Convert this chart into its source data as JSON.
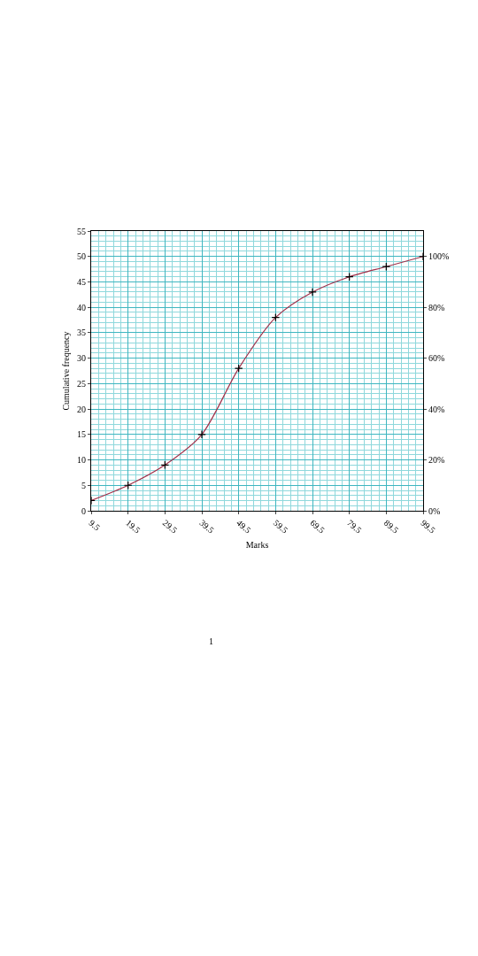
{
  "chart_data": {
    "type": "line",
    "xlabel": "Marks",
    "ylabel": "Cumulative frequency",
    "x": [
      9.5,
      19.5,
      29.5,
      39.5,
      49.5,
      59.5,
      69.5,
      79.5,
      89.5,
      99.5
    ],
    "series": [
      {
        "color": "#a0304a",
        "values": [
          2,
          5,
          9,
          15,
          28,
          38,
          43,
          46,
          48,
          50
        ]
      }
    ],
    "xlim": [
      9.5,
      99.5
    ],
    "xticks": [
      9.5,
      19.5,
      29.5,
      39.5,
      49.5,
      59.5,
      69.5,
      79.5,
      89.5,
      99.5,
      {
        "value": 11.5,
        "label": null
      },
      {
        "value": 13.5,
        "label": null
      },
      {
        "value": 15.5,
        "label": null
      },
      {
        "value": 17.5,
        "label": null
      },
      {
        "value": 21.5,
        "label": null
      },
      {
        "value": 23.5,
        "label": null
      },
      {
        "value": 25.5,
        "label": null
      },
      {
        "value": 27.5,
        "label": null
      },
      {
        "value": 31.5,
        "label": null
      },
      {
        "value": 33.5,
        "label": null
      },
      {
        "value": 35.5,
        "label": null
      },
      {
        "value": 37.5,
        "label": null
      },
      {
        "value": 41.5,
        "label": null
      },
      {
        "value": 43.5,
        "label": null
      },
      {
        "value": 45.5,
        "label": null
      },
      {
        "value": 47.5,
        "label": null
      },
      {
        "value": 51.5,
        "label": null
      },
      {
        "value": 53.5,
        "label": null
      },
      {
        "value": 55.5,
        "label": null
      },
      {
        "value": 57.5,
        "label": null
      },
      {
        "value": 61.5,
        "label": null
      },
      {
        "value": 63.5,
        "label": null
      },
      {
        "value": 65.5,
        "label": null
      },
      {
        "value": 67.5,
        "label": null
      },
      {
        "value": 71.5,
        "label": null
      },
      {
        "value": 73.5,
        "label": null
      },
      {
        "value": 75.5,
        "label": null
      },
      {
        "value": 77.5,
        "label": null
      },
      {
        "value": 81.5,
        "label": null
      },
      {
        "value": 83.5,
        "label": null
      },
      {
        "value": 85.5,
        "label": null
      },
      {
        "value": 87.5,
        "label": null
      },
      {
        "value": 91.5,
        "label": null
      },
      {
        "value": 93.5,
        "label": null
      },
      {
        "value": 95.5,
        "label": null
      },
      {
        "value": 97.5,
        "label": null
      }
    ],
    "ylim": [
      0,
      55
    ],
    "yticks": [
      0,
      5,
      10,
      15,
      20,
      25,
      30,
      35,
      40,
      45,
      50,
      55,
      {
        "value": 1,
        "label": null
      },
      {
        "value": 2,
        "label": null
      },
      {
        "value": 3,
        "label": null
      },
      {
        "value": 4,
        "label": null
      },
      {
        "value": 6,
        "label": null
      },
      {
        "value": 7,
        "label": null
      },
      {
        "value": 8,
        "label": null
      },
      {
        "value": 9,
        "label": null
      },
      {
        "value": 11,
        "label": null
      },
      {
        "value": 12,
        "label": null
      },
      {
        "value": 13,
        "label": null
      },
      {
        "value": 14,
        "label": null
      },
      {
        "value": 16,
        "label": null
      },
      {
        "value": 17,
        "label": null
      },
      {
        "value": 18,
        "label": null
      },
      {
        "value": 19,
        "label": null
      },
      {
        "value": 21,
        "label": null
      },
      {
        "value": 22,
        "label": null
      },
      {
        "value": 23,
        "label": null
      },
      {
        "value": 24,
        "label": null
      },
      {
        "value": 26,
        "label": null
      },
      {
        "value": 27,
        "label": null
      },
      {
        "value": 28,
        "label": null
      },
      {
        "value": 29,
        "label": null
      },
      {
        "value": 31,
        "label": null
      },
      {
        "value": 32,
        "label": null
      },
      {
        "value": 33,
        "label": null
      },
      {
        "value": 34,
        "label": null
      },
      {
        "value": 36,
        "label": null
      },
      {
        "value": 37,
        "label": null
      },
      {
        "value": 38,
        "label": null
      },
      {
        "value": 39,
        "label": null
      },
      {
        "value": 41,
        "label": null
      },
      {
        "value": 42,
        "label": null
      },
      {
        "value": 43,
        "label": null
      },
      {
        "value": 44,
        "label": null
      },
      {
        "value": 46,
        "label": null
      },
      {
        "value": 47,
        "label": null
      },
      {
        "value": 48,
        "label": null
      },
      {
        "value": 49,
        "label": null
      },
      {
        "value": 51,
        "label": null
      },
      {
        "value": 52,
        "label": null
      },
      {
        "value": 53,
        "label": null
      },
      {
        "value": 54,
        "label": null
      }
    ],
    "y2lim": [
      0,
      110
    ],
    "y2ticks": [
      {
        "value": 0,
        "label": "0%"
      },
      {
        "value": 20,
        "label": "20%"
      },
      {
        "value": 40,
        "label": "40%"
      },
      {
        "value": 60,
        "label": "60%"
      },
      {
        "value": 80,
        "label": "80%"
      },
      {
        "value": 100,
        "label": "100%"
      }
    ],
    "annotations": [
      "1"
    ],
    "grid": true,
    "marker": "cross",
    "line_style": "solid",
    "legend": false
  }
}
